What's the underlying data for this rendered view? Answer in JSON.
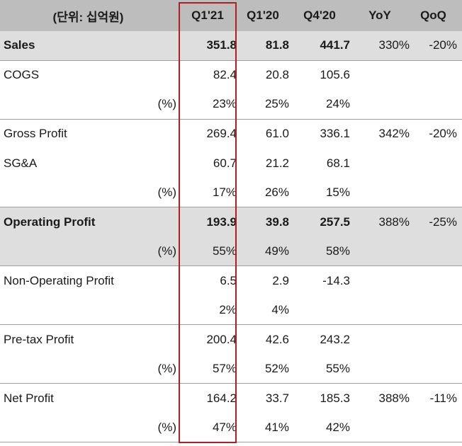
{
  "header": {
    "unit": "(단위: 십억원)",
    "q121": "Q1'21",
    "q120": "Q1'20",
    "q420": "Q4'20",
    "yoy": "YoY",
    "qoq": "QoQ"
  },
  "rows": [
    {
      "label": "Sales",
      "pct": "",
      "q121": "351.8",
      "q120": "81.8",
      "q420": "441.7",
      "yoy": "330%",
      "qoq": "-20%"
    },
    {
      "label": "COGS",
      "pct": "",
      "q121": "82.4",
      "q120": "20.8",
      "q420": "105.6",
      "yoy": "",
      "qoq": ""
    },
    {
      "label": "",
      "pct": "(%)",
      "q121": "23%",
      "q120": "25%",
      "q420": "24%",
      "yoy": "",
      "qoq": ""
    },
    {
      "label": "Gross Profit",
      "pct": "",
      "q121": "269.4",
      "q120": "61.0",
      "q420": "336.1",
      "yoy": "342%",
      "qoq": "-20%"
    },
    {
      "label": "SG&A",
      "pct": "",
      "q121": "60.7",
      "q120": "21.2",
      "q420": "68.1",
      "yoy": "",
      "qoq": ""
    },
    {
      "label": "",
      "pct": "(%)",
      "q121": "17%",
      "q120": "26%",
      "q420": "15%",
      "yoy": "",
      "qoq": ""
    },
    {
      "label": "Operating Profit",
      "pct": "",
      "q121": "193.9",
      "q120": "39.8",
      "q420": "257.5",
      "yoy": "388%",
      "qoq": "-25%"
    },
    {
      "label": "",
      "pct": "(%)",
      "q121": "55%",
      "q120": "49%",
      "q420": "58%",
      "yoy": "",
      "qoq": ""
    },
    {
      "label": "Non-Operating Profit",
      "pct": "",
      "q121": "6.5",
      "q120": "2.9",
      "q420": "-14.3",
      "yoy": "",
      "qoq": ""
    },
    {
      "label": "",
      "pct": "",
      "q121": "2%",
      "q120": "4%",
      "q420": "",
      "yoy": "",
      "qoq": ""
    },
    {
      "label": "Pre-tax Profit",
      "pct": "",
      "q121": "200.4",
      "q120": "42.6",
      "q420": "243.2",
      "yoy": "",
      "qoq": ""
    },
    {
      "label": "",
      "pct": "(%)",
      "q121": "57%",
      "q120": "52%",
      "q420": "55%",
      "yoy": "",
      "qoq": ""
    },
    {
      "label": "Net Profit",
      "pct": "",
      "q121": "164.2",
      "q120": "33.7",
      "q420": "185.3",
      "yoy": "388%",
      "qoq": "-11%"
    },
    {
      "label": "",
      "pct": "(%)",
      "q121": "47%",
      "q120": "41%",
      "q420": "42%",
      "yoy": "",
      "qoq": ""
    }
  ]
}
